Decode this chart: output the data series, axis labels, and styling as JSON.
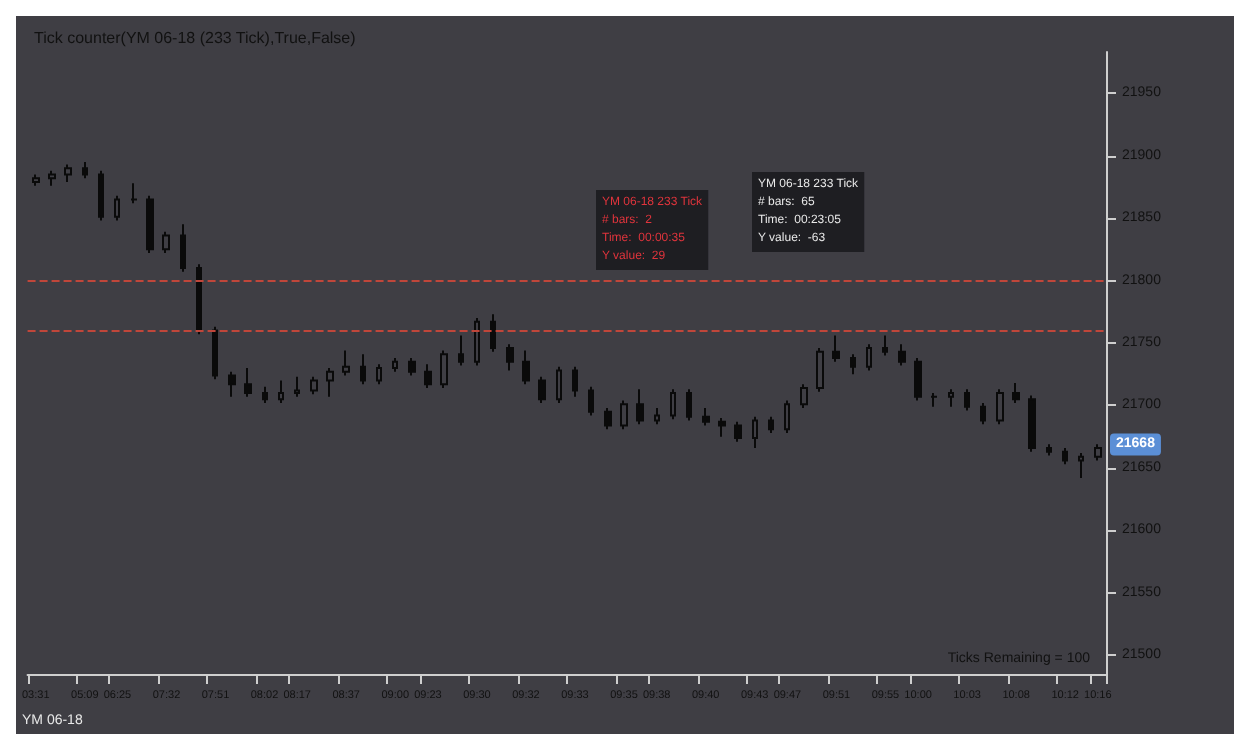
{
  "chart_data": {
    "type": "candlestick",
    "title": "Tick counter(YM 06-18 (233 Tick),True,False)",
    "categories": [
      "03:31",
      null,
      null,
      "05:09",
      null,
      "06:25",
      null,
      null,
      "07:32",
      null,
      null,
      "07:51",
      null,
      null,
      "08:02",
      null,
      "08:17",
      null,
      null,
      "08:37",
      null,
      null,
      "09:00",
      null,
      "09:23",
      null,
      null,
      "09:30",
      null,
      null,
      "09:32",
      null,
      null,
      "09:33",
      null,
      null,
      "09:35",
      null,
      "09:38",
      null,
      null,
      "09:40",
      null,
      null,
      "09:43",
      null,
      "09:47",
      null,
      null,
      "09:51",
      null,
      null,
      "09:55",
      null,
      "10:00",
      null,
      null,
      "10:03",
      null,
      null,
      "10:08",
      null,
      null,
      "10:12",
      null,
      "10:16"
    ],
    "ohlc": [
      [
        21879,
        21885,
        21876,
        21882
      ],
      [
        21882,
        21888,
        21876,
        21885
      ],
      [
        21885,
        21893,
        21879,
        21890
      ],
      [
        21890,
        21895,
        21882,
        21885
      ],
      [
        21885,
        21888,
        21848,
        21851
      ],
      [
        21851,
        21868,
        21848,
        21865
      ],
      [
        21865,
        21878,
        21862,
        21865
      ],
      [
        21865,
        21868,
        21822,
        21825
      ],
      [
        21825,
        21839,
        21822,
        21836
      ],
      [
        21836,
        21845,
        21807,
        21810
      ],
      [
        21810,
        21813,
        21757,
        21760
      ],
      [
        21760,
        21763,
        21721,
        21724
      ],
      [
        21724,
        21727,
        21707,
        21717
      ],
      [
        21717,
        21730,
        21707,
        21710
      ],
      [
        21710,
        21715,
        21702,
        21705
      ],
      [
        21705,
        21720,
        21702,
        21710
      ],
      [
        21710,
        21723,
        21707,
        21712
      ],
      [
        21712,
        21723,
        21709,
        21720
      ],
      [
        21720,
        21730,
        21707,
        21727
      ],
      [
        21727,
        21744,
        21724,
        21731
      ],
      [
        21731,
        21741,
        21717,
        21720
      ],
      [
        21720,
        21733,
        21717,
        21730
      ],
      [
        21730,
        21738,
        21727,
        21735
      ],
      [
        21735,
        21738,
        21724,
        21727
      ],
      [
        21727,
        21733,
        21714,
        21717
      ],
      [
        21717,
        21744,
        21714,
        21741
      ],
      [
        21741,
        21756,
        21732,
        21735
      ],
      [
        21735,
        21770,
        21732,
        21767
      ],
      [
        21767,
        21773,
        21743,
        21746
      ],
      [
        21746,
        21749,
        21728,
        21735
      ],
      [
        21735,
        21744,
        21717,
        21720
      ],
      [
        21720,
        21723,
        21702,
        21705
      ],
      [
        21705,
        21731,
        21702,
        21728
      ],
      [
        21728,
        21731,
        21707,
        21712
      ],
      [
        21712,
        21715,
        21692,
        21695
      ],
      [
        21695,
        21698,
        21681,
        21684
      ],
      [
        21684,
        21704,
        21681,
        21701
      ],
      [
        21701,
        21713,
        21685,
        21688
      ],
      [
        21688,
        21698,
        21685,
        21692
      ],
      [
        21692,
        21713,
        21689,
        21710
      ],
      [
        21710,
        21713,
        21688,
        21691
      ],
      [
        21691,
        21698,
        21684,
        21687
      ],
      [
        21687,
        21690,
        21675,
        21684
      ],
      [
        21684,
        21687,
        21671,
        21674
      ],
      [
        21674,
        21691,
        21666,
        21688
      ],
      [
        21688,
        21691,
        21678,
        21681
      ],
      [
        21681,
        21704,
        21678,
        21701
      ],
      [
        21701,
        21717,
        21698,
        21714
      ],
      [
        21714,
        21746,
        21711,
        21743
      ],
      [
        21743,
        21756,
        21735,
        21738
      ],
      [
        21738,
        21741,
        21725,
        21731
      ],
      [
        21731,
        21749,
        21728,
        21746
      ],
      [
        21746,
        21756,
        21740,
        21743
      ],
      [
        21743,
        21749,
        21732,
        21735
      ],
      [
        21735,
        21738,
        21704,
        21707
      ],
      [
        21707,
        21710,
        21699,
        21707
      ],
      [
        21707,
        21713,
        21699,
        21710
      ],
      [
        21710,
        21713,
        21696,
        21699
      ],
      [
        21699,
        21702,
        21685,
        21688
      ],
      [
        21688,
        21713,
        21685,
        21710
      ],
      [
        21710,
        21718,
        21702,
        21705
      ],
      [
        21705,
        21708,
        21663,
        21666
      ],
      [
        21666,
        21669,
        21660,
        21663
      ],
      [
        21663,
        21666,
        21653,
        21656
      ],
      [
        21656,
        21662,
        21642,
        21659
      ],
      [
        21659,
        21669,
        21656,
        21666
      ]
    ],
    "color": "#0a0a0a",
    "ylim": [
      21485,
      21983
    ],
    "yticks": [
      21500,
      21550,
      21600,
      21650,
      21700,
      21750,
      21800,
      21850,
      21900,
      21950
    ],
    "ref_lines": [
      {
        "axis": "y",
        "value": 21800,
        "label": null,
        "color": "#c0463a",
        "line_style": "dashed"
      },
      {
        "axis": "y",
        "value": 21760,
        "label": null,
        "color": "#c0463a",
        "line_style": "dashed"
      }
    ],
    "annotations": [
      "YM 06-18 233 Tick\n# bars:  2\nTime:  00:00:35\nY value:  29",
      "YM 06-18 233 Tick\n# bars:  65\nTime:  00:23:05\nY value:  -63",
      "Ticks Remaining = 100",
      "YM 06-18",
      {
        "text": "21668",
        "y": 21668
      }
    ],
    "grid": false
  }
}
